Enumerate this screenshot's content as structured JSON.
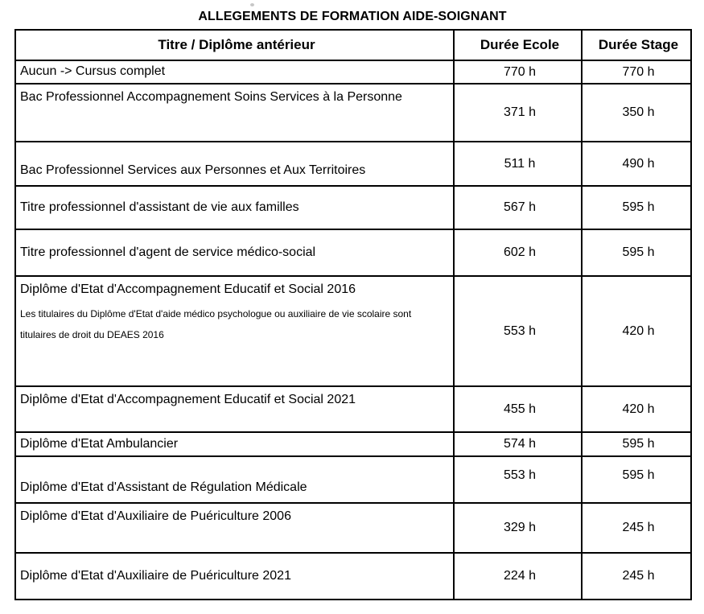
{
  "title": "ALLEGEMENTS DE FORMATION AIDE-SOIGNANT",
  "colors": {
    "text": "#000000",
    "border": "#000000",
    "background": "#ffffff"
  },
  "table": {
    "headers": [
      "Titre / Diplôme antérieur",
      "Durée Ecole",
      "Durée Stage"
    ],
    "rows": [
      {
        "title": "Aucun -> Cursus complet",
        "ecole": "770 h",
        "stage": "770 h"
      },
      {
        "title": "Bac Professionnel Accompagnement Soins Services à la Personne",
        "ecole": "371 h",
        "stage": "350 h"
      },
      {
        "title": "Bac Professionnel Services aux Personnes et Aux Territoires",
        "ecole": "511 h",
        "stage": "490 h"
      },
      {
        "title": "Titre professionnel d'assistant de vie aux  familles",
        "ecole": "567 h",
        "stage": "595 h"
      },
      {
        "title": "Titre professionnel d'agent de service médico-social",
        "ecole": "602 h",
        "stage": "595 h"
      },
      {
        "title": "Diplôme d'Etat d'Accompagnement Educatif et Social 2016",
        "note": "Les titulaires du Diplôme d'Etat d'aide médico psychologue ou auxiliaire de vie scolaire sont titulaires de droit du DEAES 2016",
        "ecole": "553 h",
        "stage": "420 h"
      },
      {
        "title": "Diplôme d'Etat d'Accompagnement Educatif et Social 2021",
        "ecole": "455 h",
        "stage": "420 h"
      },
      {
        "title": "Diplôme d'Etat Ambulancier",
        "ecole": "574 h",
        "stage": "595 h"
      },
      {
        "title": "Diplôme d'Etat d'Assistant de Régulation Médicale",
        "ecole": "553 h",
        "stage": "595 h"
      },
      {
        "title": "Diplôme  d'Etat d'Auxiliaire de Puériculture 2006",
        "ecole": "329 h",
        "stage": "245 h"
      },
      {
        "title": "Diplôme d'Etat d'Auxiliaire  de Puériculture 2021",
        "ecole": "224 h",
        "stage": "245 h"
      }
    ]
  }
}
